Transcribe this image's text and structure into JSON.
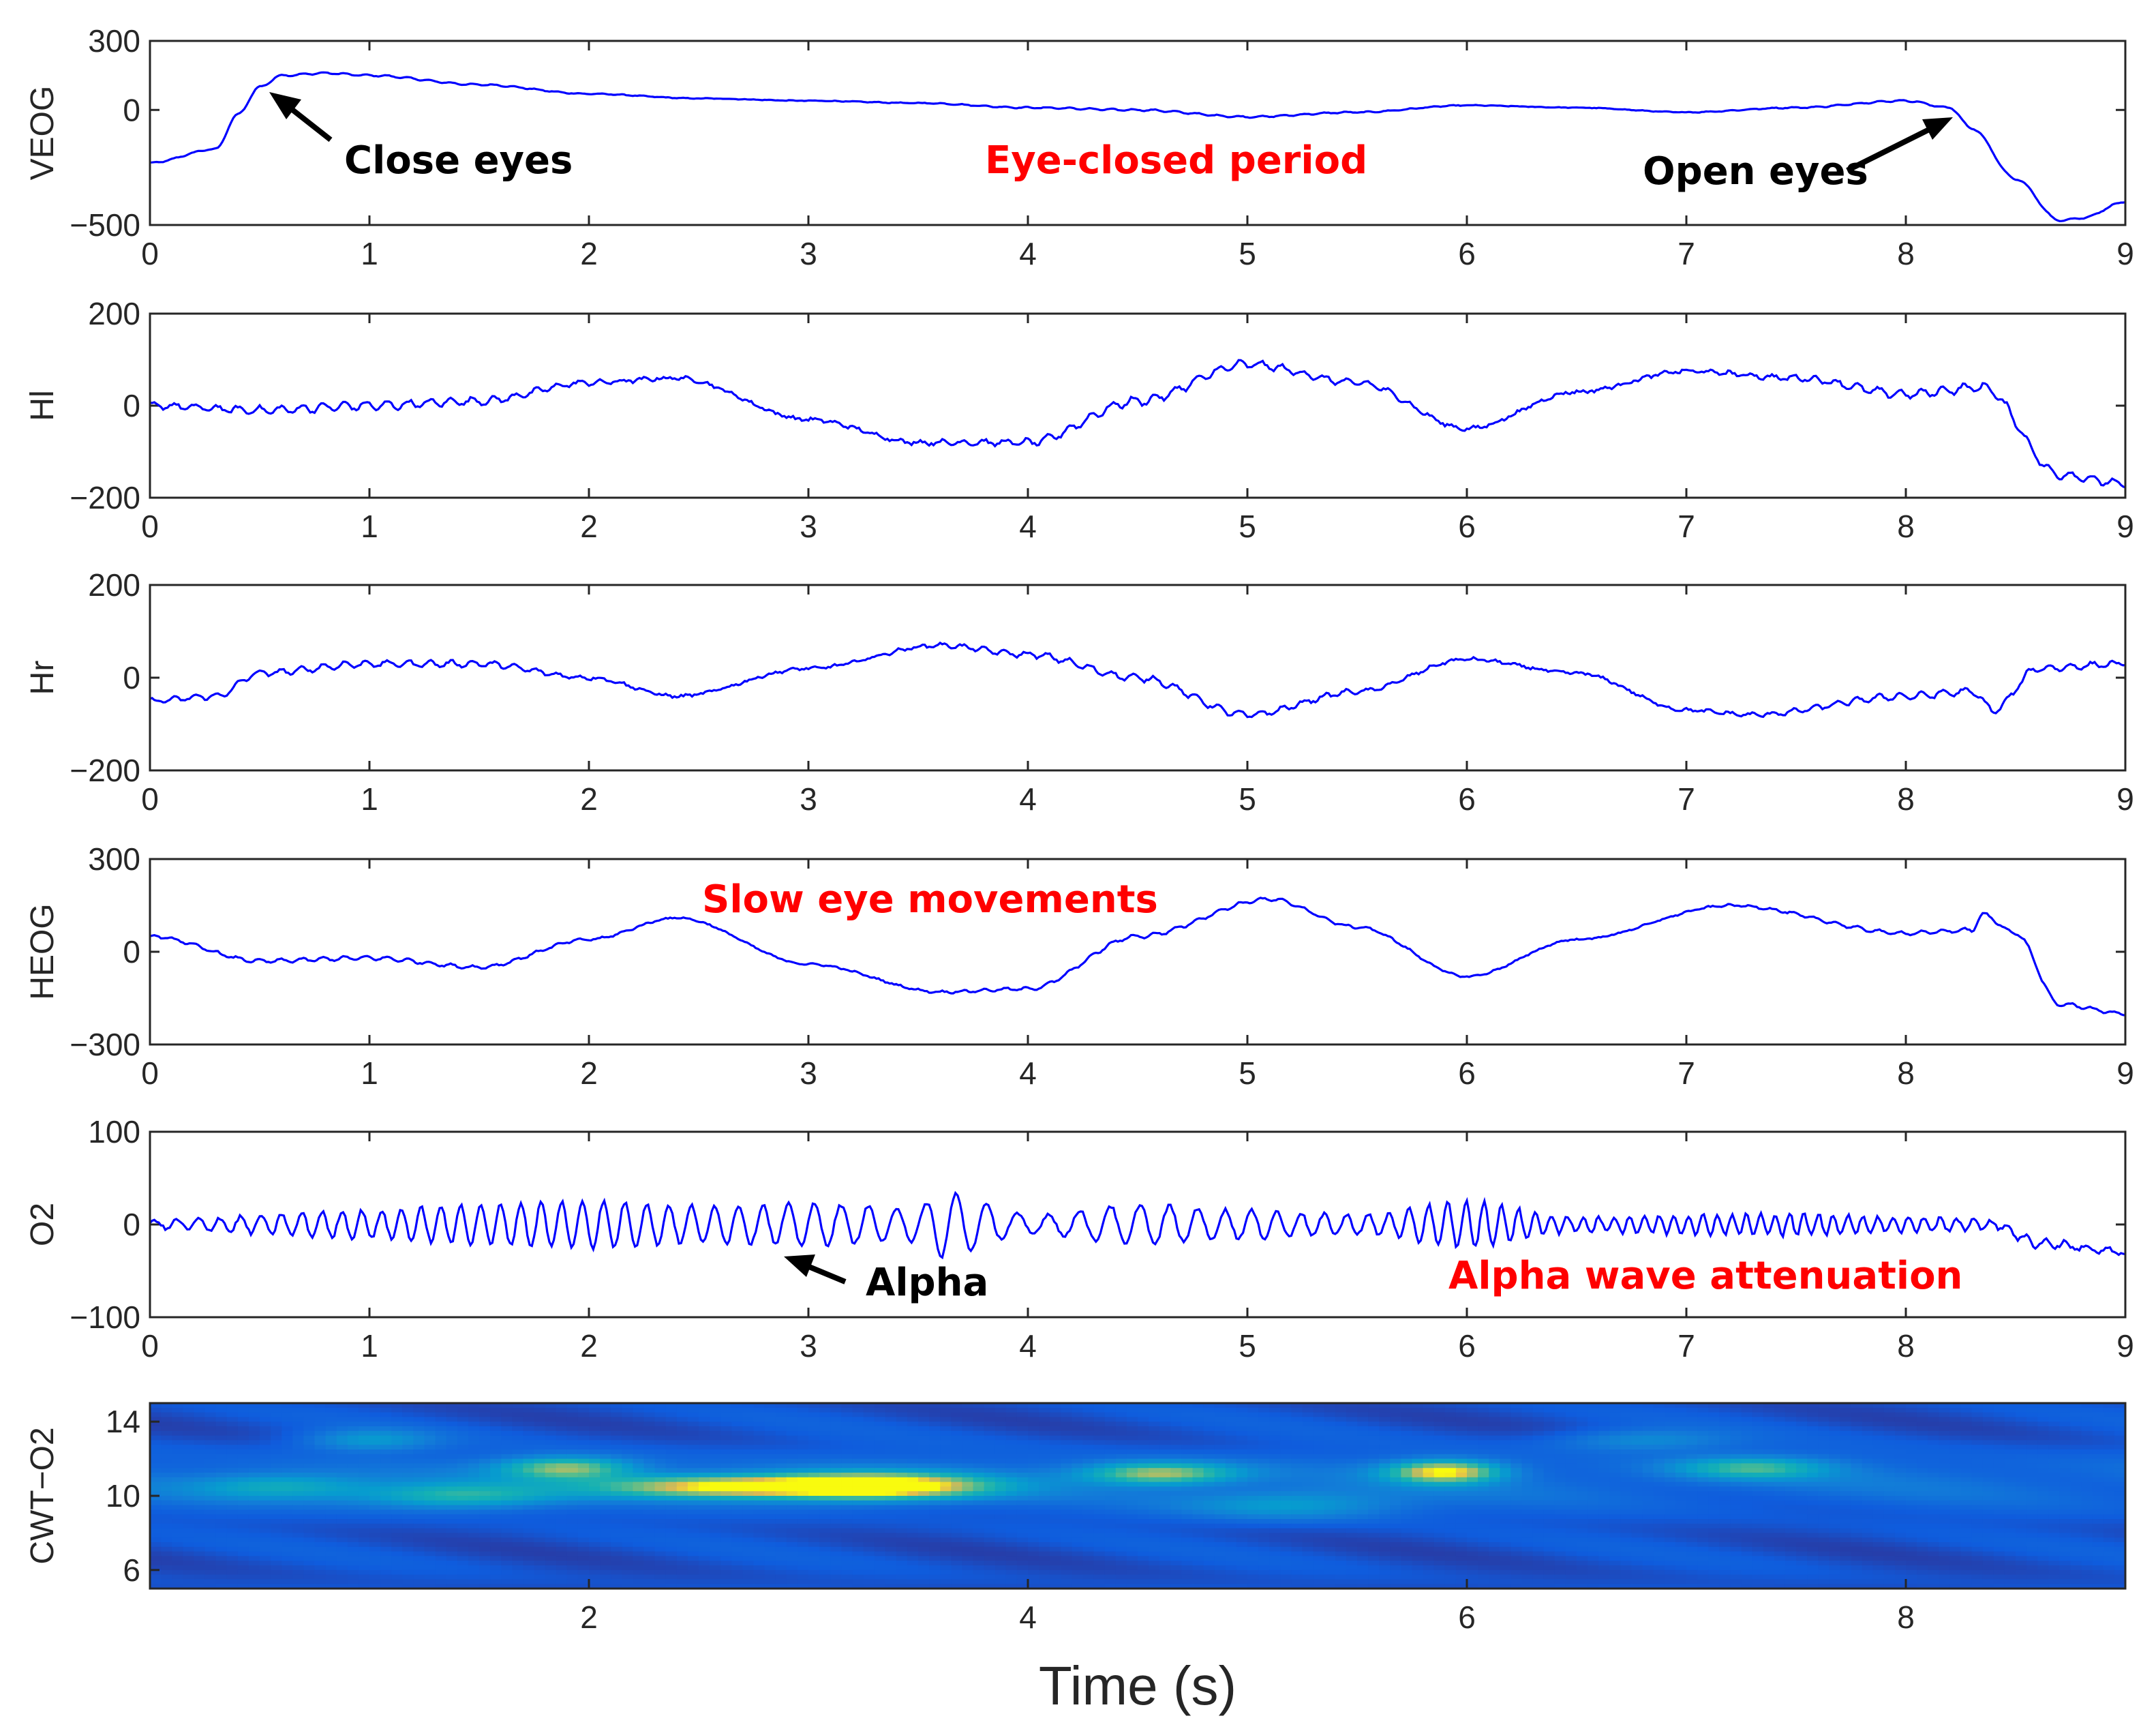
{
  "chart_data": [
    {
      "type": "line",
      "ylabel": "VEOG",
      "ylim": [
        -500,
        300
      ],
      "xlim": [
        0,
        9
      ],
      "yticks": [
        -500,
        0,
        300
      ],
      "xticks": [
        0,
        1,
        2,
        3,
        4,
        5,
        6,
        7,
        8,
        9
      ],
      "line_color": "#0000ff",
      "x": [
        0,
        0.3,
        0.4,
        0.5,
        0.6,
        0.8,
        1.0,
        1.5,
        2.0,
        2.5,
        3.0,
        3.5,
        4.0,
        4.5,
        5.0,
        5.5,
        6.0,
        6.5,
        7.0,
        7.5,
        8.0,
        8.2,
        8.3,
        8.5,
        8.7,
        8.8,
        9.0
      ],
      "y": [
        -230,
        -170,
        -20,
        100,
        150,
        160,
        150,
        110,
        70,
        50,
        40,
        30,
        10,
        0,
        -30,
        -10,
        20,
        10,
        -10,
        10,
        40,
        10,
        -80,
        -300,
        -480,
        -470,
        -400
      ],
      "noise": 6,
      "annotations": [
        {
          "text": "Close eyes",
          "color": "#000000"
        },
        {
          "text": "Eye-closed period",
          "color": "#ff0000"
        },
        {
          "text": "Open eyes",
          "color": "#000000"
        }
      ]
    },
    {
      "type": "line",
      "ylabel": "Hl",
      "ylim": [
        -200,
        200
      ],
      "xlim": [
        0,
        9
      ],
      "yticks": [
        -200,
        0,
        200
      ],
      "xticks": [
        0,
        1,
        2,
        3,
        4,
        5,
        6,
        7,
        8,
        9
      ],
      "line_color": "#0000ff",
      "x": [
        0,
        0.5,
        1.0,
        1.5,
        2.0,
        2.4,
        3.0,
        3.5,
        4.0,
        4.5,
        5.0,
        5.5,
        6.0,
        6.5,
        7.0,
        7.5,
        8.0,
        8.35,
        8.7,
        9.0
      ],
      "y": [
        0,
        -10,
        0,
        10,
        50,
        60,
        -30,
        -80,
        -80,
        10,
        90,
        50,
        -50,
        30,
        75,
        60,
        25,
        40,
        -150,
        -170
      ],
      "noise": 15
    },
    {
      "type": "line",
      "ylabel": "Hr",
      "ylim": [
        -200,
        200
      ],
      "xlim": [
        0,
        9
      ],
      "yticks": [
        -200,
        0,
        200
      ],
      "xticks": [
        0,
        1,
        2,
        3,
        4,
        5,
        6,
        7,
        8,
        9
      ],
      "line_color": "#0000ff",
      "x": [
        0,
        0.3,
        0.5,
        1.0,
        1.5,
        2.0,
        2.4,
        3.0,
        3.6,
        4.0,
        4.5,
        5.0,
        5.5,
        6.0,
        6.5,
        7.0,
        7.3,
        8.0,
        8.3,
        8.4,
        8.6,
        9.0
      ],
      "y": [
        -50,
        -40,
        10,
        30,
        30,
        0,
        -40,
        20,
        70,
        50,
        0,
        -80,
        -30,
        40,
        10,
        -70,
        -80,
        -40,
        -30,
        -70,
        20,
        30
      ],
      "noise": 12
    },
    {
      "type": "line",
      "ylabel": "HEOG",
      "ylim": [
        -300,
        300
      ],
      "xlim": [
        0,
        9
      ],
      "yticks": [
        -300,
        0,
        300
      ],
      "xticks": [
        0,
        1,
        2,
        3,
        4,
        5,
        6,
        7,
        8,
        9
      ],
      "line_color": "#0000ff",
      "x": [
        0,
        0.5,
        1.0,
        1.5,
        2.0,
        2.4,
        3.0,
        3.6,
        4.0,
        4.5,
        5.1,
        5.5,
        6.0,
        6.5,
        7.2,
        8.0,
        8.3,
        8.35,
        8.5,
        8.7,
        9.0
      ],
      "y": [
        50,
        -30,
        -20,
        -50,
        40,
        110,
        -40,
        -130,
        -120,
        50,
        170,
        80,
        -80,
        40,
        150,
        60,
        70,
        120,
        60,
        -170,
        -200
      ],
      "noise": 10,
      "annotations": [
        {
          "text": "Slow eye movements",
          "color": "#ff0000"
        }
      ]
    },
    {
      "type": "line",
      "ylabel": "O2",
      "ylim": [
        -100,
        100
      ],
      "xlim": [
        0,
        9
      ],
      "yticks": [
        -100,
        0,
        100
      ],
      "xticks": [
        0,
        1,
        2,
        3,
        4,
        5,
        6,
        7,
        8,
        9
      ],
      "line_color": "#0000ff",
      "x": [
        0,
        8.4,
        8.6,
        9.0
      ],
      "y": [
        0,
        0,
        -20,
        -30
      ],
      "alpha_osc": {
        "freq_hz": 10,
        "envelope_t": [
          0,
          1,
          1.5,
          2,
          2.5,
          3,
          3.5,
          3.6,
          4,
          4.5,
          5,
          5.5,
          6,
          6.5,
          7,
          7.5,
          8,
          8.4,
          9
        ],
        "envelope_a": [
          5,
          15,
          22,
          25,
          20,
          22,
          18,
          35,
          10,
          22,
          15,
          10,
          25,
          8,
          10,
          12,
          8,
          5,
          3
        ]
      },
      "annotations": [
        {
          "text": "Alpha",
          "color": "#000000"
        },
        {
          "text": "Alpha wave attenuation",
          "color": "#ff0000"
        }
      ]
    },
    {
      "type": "heatmap",
      "ylabel": "CWT−O2",
      "xlabel": "Time (s)",
      "xlim": [
        0,
        9
      ],
      "ylim": [
        5,
        15
      ],
      "xticks": [
        2,
        4,
        6,
        8
      ],
      "yticks": [
        6,
        10,
        14
      ],
      "hotspots": [
        {
          "t": 3.3,
          "f": 10.5,
          "st": 0.5,
          "sf": 0.7,
          "v": 1.0
        },
        {
          "t": 2.6,
          "f": 10.5,
          "st": 0.55,
          "sf": 0.6,
          "v": 0.75
        },
        {
          "t": 1.9,
          "f": 11.5,
          "st": 0.3,
          "sf": 0.6,
          "v": 0.6
        },
        {
          "t": 1.4,
          "f": 10.0,
          "st": 0.45,
          "sf": 0.7,
          "v": 0.45
        },
        {
          "t": 4.6,
          "f": 11.2,
          "st": 0.35,
          "sf": 0.6,
          "v": 0.65
        },
        {
          "t": 5.9,
          "f": 11.3,
          "st": 0.25,
          "sf": 0.6,
          "v": 0.8
        },
        {
          "t": 7.3,
          "f": 11.5,
          "st": 0.35,
          "sf": 0.6,
          "v": 0.45
        },
        {
          "t": 0.6,
          "f": 10.5,
          "st": 0.4,
          "sf": 0.7,
          "v": 0.35
        },
        {
          "t": 5.2,
          "f": 9.5,
          "st": 0.5,
          "sf": 0.8,
          "v": 0.3
        },
        {
          "t": 6.8,
          "f": 13.0,
          "st": 0.4,
          "sf": 0.6,
          "v": 0.25
        },
        {
          "t": 1.0,
          "f": 13.0,
          "st": 0.3,
          "sf": 0.6,
          "v": 0.3
        }
      ]
    }
  ]
}
